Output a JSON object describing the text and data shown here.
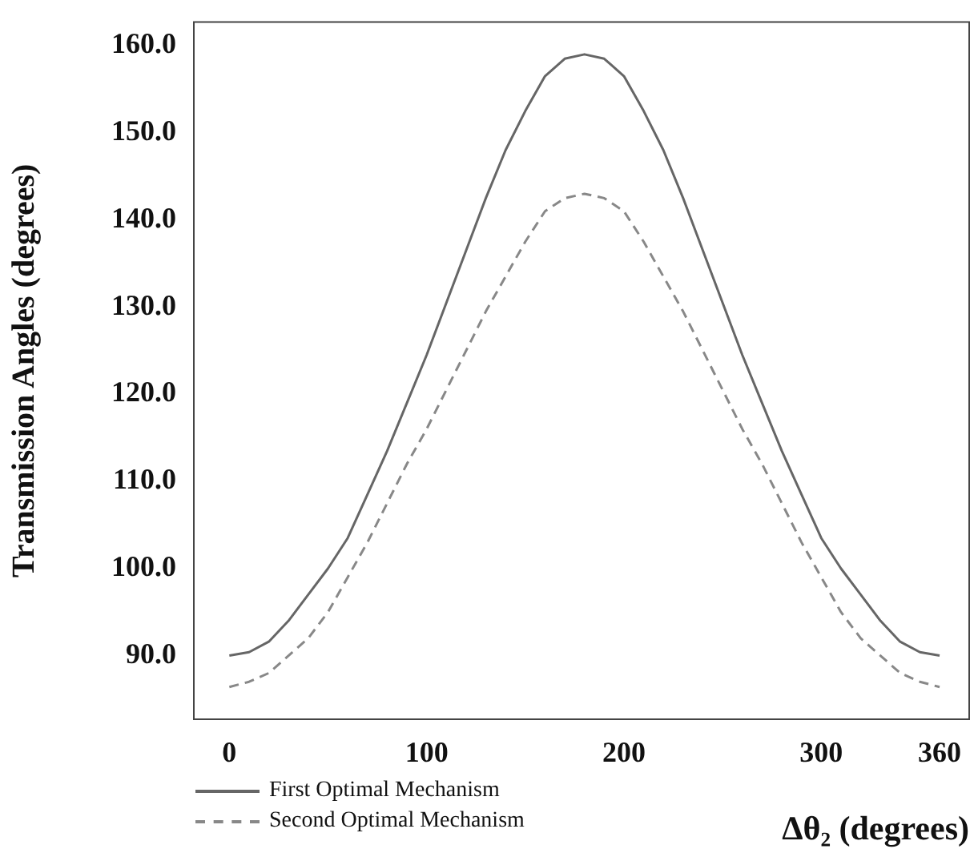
{
  "chart_data": {
    "type": "line",
    "xlabel": "Δθ₂ (degrees)",
    "ylabel": "Transmission Angles (degrees)",
    "legend": "bottom left",
    "marker": "none",
    "x": [
      0,
      10,
      20,
      30,
      40,
      50,
      60,
      70,
      80,
      90,
      100,
      110,
      120,
      130,
      140,
      150,
      160,
      170,
      180,
      190,
      200,
      210,
      220,
      230,
      240,
      250,
      260,
      270,
      280,
      290,
      300,
      310,
      320,
      330,
      340,
      350,
      360
    ],
    "series": [
      {
        "name": "First Optimal Mechanism",
        "color": "#666666",
        "line_style": "solid",
        "values": [
          90,
          90.4,
          91.6,
          94,
          97,
          100,
          103.5,
          108.5,
          113.5,
          119,
          124.5,
          130.5,
          136.5,
          142.5,
          148,
          152.5,
          156.5,
          158.5,
          159,
          158.5,
          156.5,
          152.5,
          148,
          142.5,
          136.5,
          130.5,
          124.5,
          119,
          113.5,
          108.5,
          103.5,
          100,
          97,
          94,
          91.6,
          90.4,
          90
        ]
      },
      {
        "name": "Second Optimal Mechanism",
        "color": "#888888",
        "line_style": "dashed",
        "values": [
          86.4,
          87,
          88,
          90,
          92,
          95,
          99,
          103,
          107.5,
          112,
          116,
          120.5,
          125,
          129.5,
          133.5,
          137.5,
          141,
          142.5,
          143,
          142.5,
          141,
          137.5,
          133.5,
          129.5,
          125,
          120.5,
          116,
          112,
          107.5,
          103,
          99,
          95,
          92,
          90,
          88,
          87,
          86.4
        ]
      }
    ],
    "xlim": [
      -18,
      375
    ],
    "xticks": [
      0,
      100,
      200,
      300,
      360
    ],
    "ylim": [
      82.7,
      162.7
    ],
    "yticks": [
      {
        "value": 90,
        "label": "90.0"
      },
      {
        "value": 100,
        "label": "100.0"
      },
      {
        "value": 110,
        "label": "110.0"
      },
      {
        "value": 120,
        "label": "120.0"
      },
      {
        "value": 130,
        "label": "130.0"
      },
      {
        "value": 140,
        "label": "140.0"
      },
      {
        "value": 150,
        "label": "150.0"
      },
      {
        "value": 160,
        "label": "160.0"
      }
    ]
  }
}
